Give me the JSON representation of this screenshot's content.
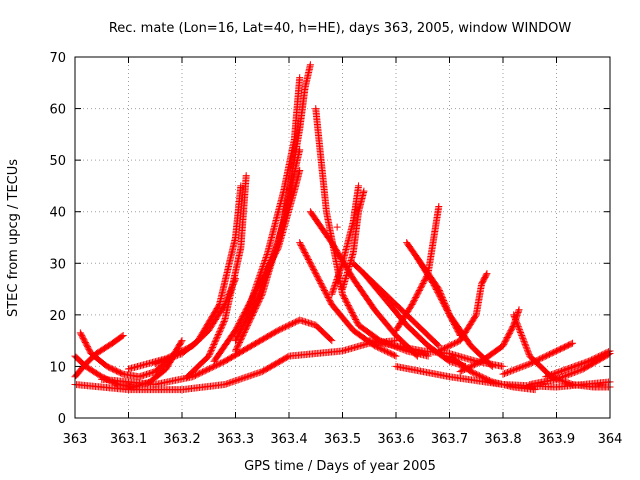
{
  "chart_data": {
    "type": "scatter",
    "title": "Rec. mate (Lon=16, Lat=40, h=HE), days 363, 2005, window WINDOW",
    "xlabel": "GPS time / Days of year 2005",
    "ylabel": "STEC from upcg / TECUs",
    "xlim": [
      363,
      364
    ],
    "ylim": [
      0,
      70
    ],
    "xticks": [
      "363",
      "363.1",
      "363.2",
      "363.3",
      "363.4",
      "363.5",
      "363.6",
      "363.7",
      "363.8",
      "363.9",
      "364"
    ],
    "yticks": [
      "0",
      "10",
      "20",
      "30",
      "40",
      "50",
      "60",
      "70"
    ],
    "grid": true,
    "marker": "+",
    "color": "#ff0000",
    "series": [
      {
        "x": [
          363.0,
          363.02,
          363.05,
          363.08,
          363.11,
          363.14,
          363.17,
          363.19
        ],
        "values": [
          12,
          10,
          8,
          6.5,
          6,
          7,
          9.5,
          13
        ]
      },
      {
        "x": [
          363.01,
          363.03,
          363.06,
          363.09,
          363.12,
          363.15,
          363.18,
          363.2
        ],
        "values": [
          16.5,
          12.5,
          10,
          8.5,
          8,
          9,
          11.5,
          15
        ]
      },
      {
        "x": [
          363.0,
          363.02,
          363.04,
          363.07,
          363.09
        ],
        "values": [
          8,
          10.5,
          12.5,
          14.5,
          16
        ]
      },
      {
        "x": [
          363.0,
          363.1,
          363.2,
          363.28,
          363.35,
          363.4,
          363.45,
          363.5,
          363.55,
          363.6
        ],
        "values": [
          6.5,
          5.5,
          5.5,
          6.5,
          9,
          12,
          12.5,
          13,
          14.5,
          15
        ]
      },
      {
        "x": [
          363.05,
          363.15,
          363.22,
          363.28,
          363.33,
          363.38,
          363.42,
          363.45,
          363.48
        ],
        "values": [
          7.5,
          6.5,
          8,
          11,
          14,
          17,
          19,
          18,
          15
        ]
      },
      {
        "x": [
          363.1,
          363.17,
          363.22,
          363.25,
          363.28,
          363.3
        ],
        "values": [
          9.5,
          11.5,
          14,
          17,
          22,
          27
        ]
      },
      {
        "x": [
          363.15,
          363.2,
          363.23,
          363.27,
          363.3,
          363.31
        ],
        "values": [
          10.5,
          12.5,
          15,
          22,
          35,
          45
        ]
      },
      {
        "x": [
          363.21,
          363.25,
          363.28,
          363.31,
          363.32
        ],
        "values": [
          8,
          12,
          19,
          33,
          47
        ]
      },
      {
        "x": [
          363.26,
          363.3,
          363.34,
          363.38,
          363.41,
          363.42
        ],
        "values": [
          11,
          17,
          25,
          33,
          44,
          48
        ]
      },
      {
        "x": [
          363.3,
          363.35,
          363.39,
          363.42,
          363.43,
          363.44
        ],
        "values": [
          13,
          24,
          38,
          56,
          64,
          68.5
        ]
      },
      {
        "x": [
          363.32,
          363.36,
          363.39,
          363.41,
          363.42
        ],
        "values": [
          20,
          32,
          44,
          54,
          66
        ]
      },
      {
        "x": [
          363.3,
          363.34,
          363.38,
          363.4,
          363.42
        ],
        "values": [
          15,
          23,
          34,
          43,
          52
        ]
      },
      {
        "x": [
          363.45,
          363.47,
          363.5,
          363.53,
          363.57,
          363.62,
          363.66
        ],
        "values": [
          60,
          40,
          24,
          18,
          15,
          13,
          12
        ]
      },
      {
        "x": [
          363.42,
          363.45,
          363.48,
          363.52,
          363.56,
          363.6
        ],
        "values": [
          34,
          28,
          22,
          17,
          14,
          12
        ]
      },
      {
        "x": [
          363.44,
          363.48,
          363.52,
          363.56,
          363.6,
          363.64
        ],
        "values": [
          40,
          34,
          27,
          21,
          16,
          12
        ]
      },
      {
        "x": [
          363.48,
          363.5,
          363.52,
          363.53
        ],
        "values": [
          24,
          30,
          38,
          45
        ]
      },
      {
        "x": [
          363.5,
          363.52,
          363.53,
          363.54
        ],
        "values": [
          25,
          32,
          40,
          44
        ]
      },
      {
        "x": [
          363.54,
          363.58,
          363.62,
          363.66,
          363.7,
          363.73
        ],
        "values": [
          28,
          23,
          18,
          14,
          11,
          10
        ]
      },
      {
        "x": [
          363.52,
          363.56,
          363.6,
          363.64,
          363.68
        ],
        "values": [
          30,
          26,
          22,
          18,
          14
        ]
      },
      {
        "x": [
          363.6,
          363.63,
          363.66,
          363.68
        ],
        "values": [
          17,
          22,
          28,
          41
        ]
      },
      {
        "x": [
          363.62,
          363.66,
          363.68,
          363.7,
          363.72
        ],
        "values": [
          34,
          28,
          25,
          20,
          16
        ]
      },
      {
        "x": [
          363.64,
          363.67,
          363.7,
          363.74,
          363.78
        ],
        "values": [
          31,
          26,
          20,
          14,
          10
        ]
      },
      {
        "x": [
          363.55,
          363.6,
          363.65,
          363.7,
          363.75,
          363.8
        ],
        "values": [
          15,
          14,
          13,
          12.5,
          11,
          10
        ]
      },
      {
        "x": [
          363.68,
          363.72,
          363.75,
          363.76,
          363.77
        ],
        "values": [
          13,
          15,
          20,
          26,
          28
        ]
      },
      {
        "x": [
          363.7,
          363.74,
          363.78,
          363.82,
          363.86
        ],
        "values": [
          12,
          9,
          7,
          6,
          5.5
        ]
      },
      {
        "x": [
          363.72,
          363.76,
          363.8,
          363.82,
          363.83
        ],
        "values": [
          9,
          11,
          14,
          18,
          21
        ]
      },
      {
        "x": [
          363.82,
          363.85,
          363.89,
          363.93,
          363.97,
          364.0
        ],
        "values": [
          20,
          12,
          8,
          6.5,
          6,
          6
        ]
      },
      {
        "x": [
          363.8,
          363.85,
          363.9,
          363.93
        ],
        "values": [
          8.5,
          10.5,
          13,
          14.5
        ]
      },
      {
        "x": [
          363.85,
          363.9,
          363.95,
          364.0
        ],
        "values": [
          6.5,
          7.5,
          9.5,
          12.5
        ]
      },
      {
        "x": [
          363.88,
          363.92,
          363.96,
          364.0
        ],
        "values": [
          8,
          9.5,
          11,
          13
        ]
      },
      {
        "x": [
          363.6,
          363.7,
          363.8,
          363.9,
          364.0
        ],
        "values": [
          10,
          8,
          6.5,
          6,
          7
        ]
      }
    ],
    "isolated_points": {
      "x": [
        363.49
      ],
      "values": [
        37
      ]
    }
  }
}
